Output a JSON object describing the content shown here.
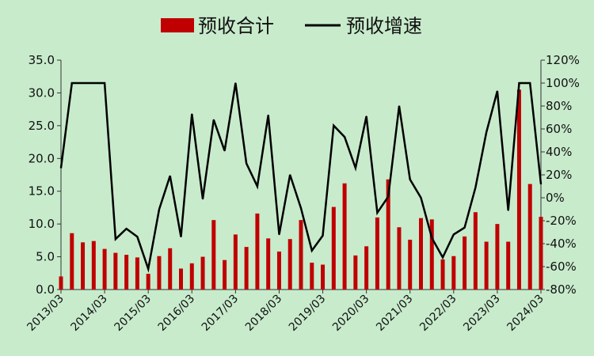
{
  "colors": {
    "bar": "#c00000",
    "line": "#000000",
    "background": "#c8ebcc"
  },
  "chart_data": {
    "type": "bar",
    "x": [
      "2013/03",
      "2013/06",
      "2013/09",
      "2013/12",
      "2014/03",
      "2014/06",
      "2014/09",
      "2014/12",
      "2015/03",
      "2015/06",
      "2015/09",
      "2015/12",
      "2016/03",
      "2016/06",
      "2016/09",
      "2016/12",
      "2017/03",
      "2017/06",
      "2017/09",
      "2017/12",
      "2018/03",
      "2018/06",
      "2018/09",
      "2018/12",
      "2019/03",
      "2019/06",
      "2019/09",
      "2019/12",
      "2020/03",
      "2020/06",
      "2020/09",
      "2020/12",
      "2021/03",
      "2021/06",
      "2021/09",
      "2021/12",
      "2022/03",
      "2022/06",
      "2022/09",
      "2022/12",
      "2023/03",
      "2023/06",
      "2023/09",
      "2023/12",
      "2024/03"
    ],
    "x_tick_labels": [
      "2013/03",
      "2014/03",
      "2015/03",
      "2016/03",
      "2017/03",
      "2018/03",
      "2019/03",
      "2020/03",
      "2021/03",
      "2022/03",
      "2023/03",
      "2024/03"
    ],
    "series": [
      {
        "name": "预收合计",
        "type": "bar",
        "axis": "left",
        "values": [
          2.0,
          8.6,
          7.2,
          7.4,
          6.2,
          5.6,
          5.3,
          4.9,
          2.4,
          5.1,
          6.3,
          3.2,
          4.0,
          5.0,
          10.6,
          4.5,
          8.4,
          6.5,
          11.6,
          7.8,
          5.8,
          7.7,
          10.6,
          4.1,
          3.8,
          12.6,
          16.2,
          5.2,
          6.6,
          11.0,
          16.8,
          9.5,
          7.6,
          10.9,
          10.7,
          4.6,
          5.1,
          8.1,
          11.8,
          7.3,
          10.0,
          7.3,
          30.5,
          16.1,
          11.1
        ]
      },
      {
        "name": "预收增速",
        "type": "line",
        "axis": "right",
        "values": [
          26,
          100,
          100,
          100,
          100,
          -36,
          -27,
          -34,
          -62,
          -10,
          19,
          -34,
          73,
          -1,
          68,
          41,
          100,
          30,
          10,
          72,
          -32,
          20,
          -9,
          -46,
          -33,
          63,
          53,
          26,
          71,
          -13,
          1,
          80,
          16,
          0,
          -35,
          -52,
          -32,
          -26,
          9,
          57,
          93,
          -11,
          100,
          100,
          12
        ]
      }
    ],
    "y_left": {
      "ylim": [
        0,
        35
      ],
      "ticks": [
        "0.0",
        "5.0",
        "10.0",
        "15.0",
        "20.0",
        "25.0",
        "30.0",
        "35.0"
      ]
    },
    "y_right": {
      "ylim": [
        -80,
        120
      ],
      "ticks": [
        "-80%",
        "-60%",
        "-40%",
        "-20%",
        "0%",
        "20%",
        "40%",
        "60%",
        "80%",
        "100%",
        "120%"
      ]
    },
    "legend_position": "top-center",
    "grid": false
  }
}
